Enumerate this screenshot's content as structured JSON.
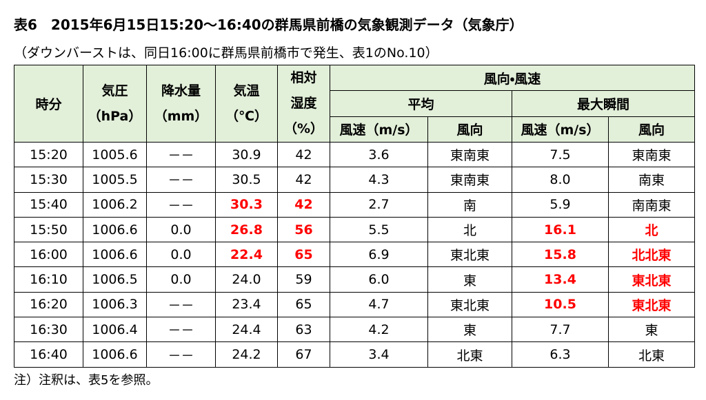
{
  "title": "表6　2015年6月15日15:20～16:40の群馬県前橋の気象観測データ（気象庁）",
  "subtitle": "（ダウンバーストは、同日16:00に群馬県前橋市で発生、表1のNo.10）",
  "header": {
    "time": "時分",
    "pressure": [
      "気圧",
      "（hPa）"
    ],
    "precipitation": [
      "降水量",
      "（mm）"
    ],
    "temperature": [
      "気温",
      "（℃）"
    ],
    "humidity": [
      "相対",
      "湿度",
      "（%）"
    ],
    "wind": "風向・風速",
    "average": "平均",
    "max_gust": "最大瞬間",
    "sub": [
      "風速（m/s）",
      "風向",
      "風速（m/s）",
      "風向"
    ]
  },
  "rows": [
    [
      "15:20",
      "1005.6",
      "－－",
      "30.9",
      "42",
      "3.6",
      "東南東",
      "7.5",
      "東南東"
    ],
    [
      "15:30",
      "1005.5",
      "－－",
      "30.5",
      "42",
      "4.3",
      "東南東",
      "8.0",
      "南東"
    ],
    [
      "15:40",
      "1006.2",
      "－－",
      {
        "text": "30.3",
        "emphasis": true
      },
      {
        "text": "42",
        "emphasis": true
      },
      "2.7",
      "南",
      "5.9",
      "南南東"
    ],
    [
      "15:50",
      "1006.6",
      "0.0",
      {
        "text": "26.8",
        "emphasis": true
      },
      {
        "text": "56",
        "emphasis": true
      },
      "5.5",
      "北",
      {
        "text": "16.1",
        "emphasis": true
      },
      {
        "text": "北",
        "emphasis": true
      }
    ],
    [
      "16:00",
      "1006.6",
      "0.0",
      {
        "text": "22.4",
        "emphasis": true
      },
      {
        "text": "65",
        "emphasis": true
      },
      "6.9",
      "東北東",
      {
        "text": "15.8",
        "emphasis": true
      },
      {
        "text": "北北東",
        "emphasis": true
      }
    ],
    [
      "16:10",
      "1006.5",
      "0.0",
      "24.0",
      "59",
      "6.0",
      "東",
      {
        "text": "13.4",
        "emphasis": true
      },
      {
        "text": "東北東",
        "emphasis": true
      }
    ],
    [
      "16:20",
      "1006.3",
      "－－",
      "23.4",
      "65",
      "4.7",
      "東北東",
      {
        "text": "10.5",
        "emphasis": true
      },
      {
        "text": "東北東",
        "emphasis": true
      }
    ],
    [
      "16:30",
      "1006.4",
      "－－",
      "24.4",
      "63",
      "4.2",
      "東",
      "7.7",
      "東"
    ],
    [
      "16:40",
      "1006.6",
      "－－",
      "24.2",
      "67",
      "3.4",
      "北東",
      "6.3",
      "北東"
    ]
  ],
  "note": "注）注釈は、表5を参照。"
}
